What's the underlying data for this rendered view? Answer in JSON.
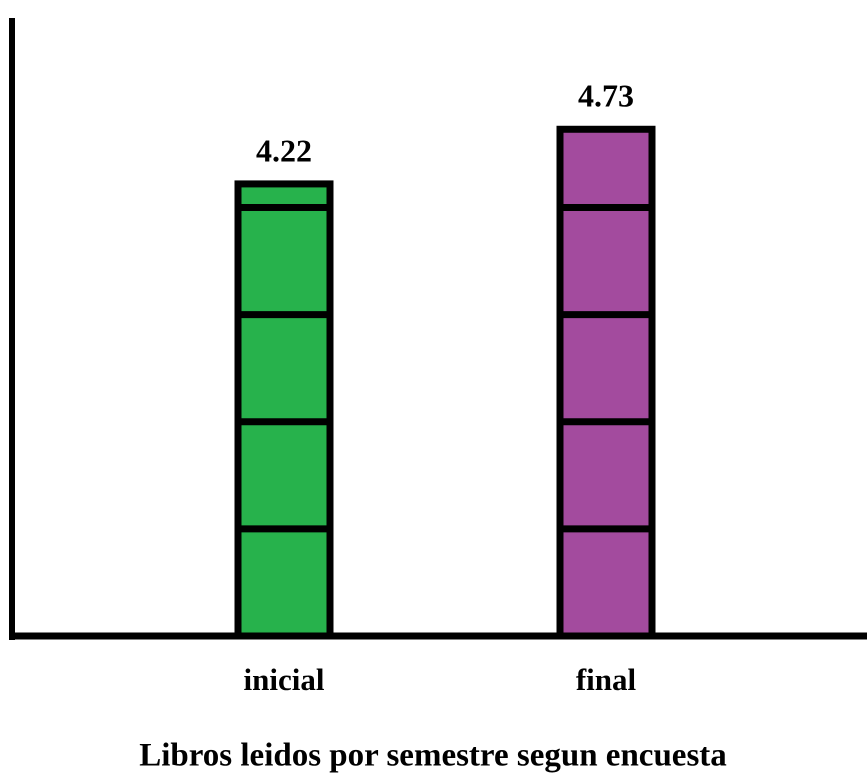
{
  "chart_data": {
    "type": "bar",
    "title": "Libros leidos por semestre segun encuesta",
    "categories": [
      "inicial",
      "final"
    ],
    "values": [
      4.22,
      4.73
    ],
    "colors": [
      "#27b24c",
      "#a34b9e"
    ],
    "ylim": [
      0,
      5.75
    ]
  }
}
